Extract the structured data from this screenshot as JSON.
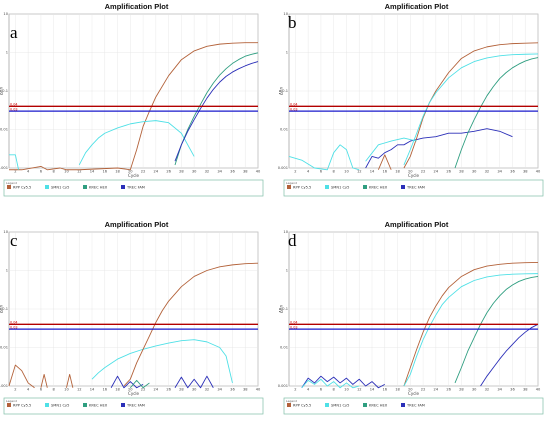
{
  "colors": {
    "rpp": "#b3623a",
    "smn1": "#4fe0e6",
    "krec": "#2f9e80",
    "trec": "#2b2fb8",
    "threshold_red": "#b30000",
    "threshold_blue": "#1a1acc",
    "grid": "#e3e3e3",
    "legend_border": "#7fbfa8"
  },
  "legend": {
    "title": "Legend",
    "items": [
      {
        "key": "rpp",
        "label": "RPP Cy5.5"
      },
      {
        "key": "smn1",
        "label": "SMN1 Cy5"
      },
      {
        "key": "krec",
        "label": "KREC HEX"
      },
      {
        "key": "trec",
        "label": "TREC FAM"
      }
    ]
  },
  "threshold_labels": [
    "0.04",
    "0.03"
  ],
  "chart_data": [
    {
      "panel": "a",
      "type": "line",
      "title": "Amplification Plot",
      "xlabel": "Cycle",
      "ylabel": "ΔRn",
      "y_scale": "log",
      "ylim": [
        0.001,
        10
      ],
      "y_ticks": [
        "0.001",
        "0.01",
        "0.1",
        "1",
        "10"
      ],
      "xlim": [
        1,
        40
      ],
      "x_ticks": [
        "2",
        "4",
        "6",
        "8",
        "10",
        "12",
        "14",
        "16",
        "18",
        "20",
        "22",
        "24",
        "26",
        "28",
        "30",
        "32",
        "34",
        "36",
        "38",
        "40"
      ],
      "thresholds": [
        {
          "key": "rpp",
          "value": 0.04
        },
        {
          "key": "trec",
          "value": 0.03
        }
      ],
      "series": [
        {
          "key": "rpp",
          "x": [
            1,
            3,
            6,
            7,
            9,
            10,
            12,
            18,
            20,
            21,
            22,
            23,
            24,
            26,
            28,
            30,
            32,
            34,
            36,
            38,
            40
          ],
          "y": [
            0.0009,
            0.0009,
            0.0011,
            0.0008,
            0.001,
            0.0009,
            0.0008,
            0.001,
            0.0009,
            0.003,
            0.012,
            0.03,
            0.07,
            0.25,
            0.65,
            1.1,
            1.45,
            1.65,
            1.75,
            1.8,
            1.8
          ]
        },
        {
          "key": "smn1",
          "x": [
            12,
            13,
            14,
            15,
            16,
            18,
            20,
            22,
            24,
            26,
            28,
            30
          ],
          "y": [
            0.0012,
            0.0025,
            0.004,
            0.006,
            0.008,
            0.011,
            0.014,
            0.016,
            0.017,
            0.015,
            0.008,
            0.002
          ]
        },
        {
          "key": "krec",
          "x": [
            27,
            28,
            29,
            30,
            31,
            32,
            33,
            34,
            35,
            36,
            37,
            38,
            39,
            40
          ],
          "y": [
            0.0012,
            0.004,
            0.01,
            0.022,
            0.045,
            0.09,
            0.16,
            0.26,
            0.38,
            0.52,
            0.66,
            0.8,
            0.9,
            0.98
          ]
        },
        {
          "key": "trec",
          "x": [
            27,
            28,
            29,
            30,
            31,
            32,
            33,
            34,
            35,
            36,
            37,
            38,
            39,
            40
          ],
          "y": [
            0.0015,
            0.004,
            0.009,
            0.018,
            0.035,
            0.065,
            0.11,
            0.17,
            0.24,
            0.31,
            0.38,
            0.45,
            0.52,
            0.58
          ]
        },
        {
          "key": "smn1",
          "x": [
            1,
            2,
            2.5
          ],
          "y": [
            0.0022,
            0.0022,
            0.0009
          ]
        }
      ]
    },
    {
      "panel": "b",
      "type": "line",
      "title": "Amplification Plot",
      "xlabel": "Cycle",
      "ylabel": "ΔRn",
      "y_scale": "log",
      "ylim": [
        0.001,
        10
      ],
      "y_ticks": [
        "0.001",
        "0.01",
        "0.1",
        "1",
        "10"
      ],
      "xlim": [
        1,
        40
      ],
      "x_ticks": [
        "2",
        "4",
        "6",
        "8",
        "10",
        "12",
        "14",
        "16",
        "18",
        "20",
        "22",
        "24",
        "26",
        "28",
        "30",
        "32",
        "34",
        "36",
        "38",
        "40"
      ],
      "thresholds": [
        {
          "key": "rpp",
          "value": 0.04
        },
        {
          "key": "trec",
          "value": 0.03
        }
      ],
      "series": [
        {
          "key": "smn1",
          "x": [
            1,
            3,
            5,
            7,
            8,
            9,
            10,
            11,
            12
          ],
          "y": [
            0.002,
            0.0016,
            0.001,
            0.0009,
            0.0025,
            0.004,
            0.003,
            0.001,
            0.0009
          ]
        },
        {
          "key": "rpp",
          "x": [
            15,
            16,
            17
          ],
          "y": [
            0.0009,
            0.0022,
            0.0009
          ]
        },
        {
          "key": "trec",
          "x": [
            13,
            14,
            15,
            16,
            17,
            18,
            19,
            20,
            22,
            24,
            26,
            28,
            30,
            32,
            34,
            36
          ],
          "y": [
            0.001,
            0.002,
            0.0018,
            0.0025,
            0.003,
            0.004,
            0.004,
            0.005,
            0.006,
            0.0065,
            0.008,
            0.008,
            0.009,
            0.0105,
            0.009,
            0.0065
          ]
        },
        {
          "key": "rpp",
          "x": [
            19,
            20,
            21,
            22,
            23,
            24,
            26,
            28,
            30,
            32,
            34,
            36,
            38,
            40
          ],
          "y": [
            0.001,
            0.002,
            0.006,
            0.02,
            0.05,
            0.1,
            0.3,
            0.7,
            1.1,
            1.4,
            1.6,
            1.7,
            1.75,
            1.78
          ]
        },
        {
          "key": "smn1",
          "x": [
            19,
            20,
            21,
            22,
            23,
            24,
            26,
            28,
            30,
            32,
            34,
            36,
            38,
            40
          ],
          "y": [
            0.0012,
            0.003,
            0.008,
            0.022,
            0.05,
            0.09,
            0.22,
            0.4,
            0.58,
            0.72,
            0.82,
            0.88,
            0.9,
            0.92
          ]
        },
        {
          "key": "smn1",
          "x": [
            13,
            15,
            17,
            19,
            21
          ],
          "y": [
            0.0015,
            0.004,
            0.005,
            0.006,
            0.005
          ]
        },
        {
          "key": "krec",
          "x": [
            27,
            28,
            29,
            30,
            31,
            32,
            33,
            34,
            35,
            36,
            37,
            38,
            39,
            40
          ],
          "y": [
            0.001,
            0.003,
            0.008,
            0.018,
            0.038,
            0.075,
            0.13,
            0.21,
            0.3,
            0.4,
            0.5,
            0.6,
            0.68,
            0.74
          ]
        }
      ]
    },
    {
      "panel": "c",
      "type": "line",
      "title": "Amplification Plot",
      "xlabel": "Cycle",
      "ylabel": "ΔRn",
      "y_scale": "log",
      "ylim": [
        0.001,
        10
      ],
      "y_ticks": [
        "0.001",
        "0.01",
        "0.1",
        "1",
        "10"
      ],
      "xlim": [
        1,
        40
      ],
      "x_ticks": [
        "2",
        "4",
        "6",
        "8",
        "10",
        "12",
        "14",
        "16",
        "18",
        "20",
        "22",
        "24",
        "26",
        "28",
        "30",
        "32",
        "34",
        "36",
        "38",
        "40"
      ],
      "thresholds": [
        {
          "key": "rpp",
          "value": 0.04
        },
        {
          "key": "trec",
          "value": 0.03
        }
      ],
      "series": [
        {
          "key": "rpp",
          "x": [
            1,
            2,
            3,
            4,
            5
          ],
          "y": [
            0.001,
            0.0035,
            0.0025,
            0.0012,
            0.0009
          ]
        },
        {
          "key": "rpp",
          "x": [
            6,
            6.5,
            7
          ],
          "y": [
            0.0009,
            0.002,
            0.0009
          ]
        },
        {
          "key": "rpp",
          "x": [
            10,
            10.5,
            11
          ],
          "y": [
            0.0009,
            0.002,
            0.0009
          ]
        },
        {
          "key": "smn1",
          "x": [
            14,
            15,
            16,
            18,
            20,
            22,
            24,
            26,
            28,
            30,
            32,
            34,
            35,
            36
          ],
          "y": [
            0.0015,
            0.0022,
            0.003,
            0.005,
            0.007,
            0.009,
            0.011,
            0.013,
            0.015,
            0.016,
            0.014,
            0.01,
            0.006,
            0.0012
          ]
        },
        {
          "key": "rpp",
          "x": [
            19,
            20,
            21,
            22,
            23,
            24,
            25,
            26,
            28,
            30,
            32,
            34,
            36,
            38,
            40
          ],
          "y": [
            0.001,
            0.0015,
            0.004,
            0.009,
            0.02,
            0.045,
            0.09,
            0.16,
            0.38,
            0.7,
            1.0,
            1.25,
            1.4,
            1.5,
            1.55
          ]
        },
        {
          "key": "trec",
          "x": [
            17,
            18,
            19,
            20,
            21,
            22
          ],
          "y": [
            0.0009,
            0.0018,
            0.0009,
            0.0013,
            0.0009,
            0.0011
          ]
        },
        {
          "key": "trec",
          "x": [
            27,
            28,
            29,
            30,
            31,
            32,
            33
          ],
          "y": [
            0.0009,
            0.0017,
            0.0009,
            0.0015,
            0.0009,
            0.0018,
            0.0009
          ]
        },
        {
          "key": "krec",
          "x": [
            20,
            21,
            22,
            23
          ],
          "y": [
            0.0009,
            0.0014,
            0.0009,
            0.0012
          ]
        }
      ]
    },
    {
      "panel": "d",
      "type": "line",
      "title": "Amplification Plot",
      "xlabel": "Cycle",
      "ylabel": "ΔRn",
      "y_scale": "log",
      "ylim": [
        0.001,
        10
      ],
      "y_ticks": [
        "0.001",
        "0.01",
        "0.1",
        "1",
        "10"
      ],
      "xlim": [
        1,
        40
      ],
      "x_ticks": [
        "2",
        "4",
        "6",
        "8",
        "10",
        "12",
        "14",
        "16",
        "18",
        "20",
        "22",
        "24",
        "26",
        "28",
        "30",
        "32",
        "34",
        "36",
        "38",
        "40"
      ],
      "thresholds": [
        {
          "key": "rpp",
          "value": 0.04
        },
        {
          "key": "trec",
          "value": 0.03
        }
      ],
      "series": [
        {
          "key": "trec",
          "x": [
            3,
            4,
            5,
            6,
            7,
            8,
            9,
            10,
            11,
            12,
            13,
            14,
            15,
            16
          ],
          "y": [
            0.0009,
            0.0016,
            0.0012,
            0.0018,
            0.0013,
            0.0017,
            0.0012,
            0.0016,
            0.0011,
            0.0015,
            0.001,
            0.0013,
            0.0009,
            0.0011
          ]
        },
        {
          "key": "smn1",
          "x": [
            3,
            4,
            5,
            6,
            7,
            8,
            9,
            10,
            11,
            12
          ],
          "y": [
            0.0009,
            0.0014,
            0.0011,
            0.0015,
            0.001,
            0.0013,
            0.0009,
            0.0012,
            0.0009,
            0.001
          ]
        },
        {
          "key": "rpp",
          "x": [
            19,
            20,
            21,
            22,
            23,
            24,
            25,
            26,
            28,
            30,
            32,
            34,
            36,
            38,
            40
          ],
          "y": [
            0.001,
            0.003,
            0.009,
            0.025,
            0.06,
            0.12,
            0.22,
            0.36,
            0.7,
            1.05,
            1.3,
            1.45,
            1.55,
            1.6,
            1.62
          ]
        },
        {
          "key": "smn1",
          "x": [
            19,
            20,
            21,
            22,
            23,
            24,
            25,
            26,
            28,
            30,
            32,
            34,
            36,
            38,
            40
          ],
          "y": [
            0.001,
            0.002,
            0.006,
            0.016,
            0.035,
            0.07,
            0.13,
            0.2,
            0.38,
            0.55,
            0.68,
            0.76,
            0.8,
            0.82,
            0.83
          ]
        },
        {
          "key": "krec",
          "x": [
            27,
            28,
            29,
            30,
            31,
            32,
            33,
            34,
            35,
            36,
            37,
            38,
            39,
            40
          ],
          "y": [
            0.0012,
            0.003,
            0.008,
            0.018,
            0.04,
            0.08,
            0.14,
            0.22,
            0.32,
            0.42,
            0.52,
            0.6,
            0.66,
            0.7
          ]
        },
        {
          "key": "trec",
          "x": [
            31,
            32,
            33,
            34,
            35,
            36,
            37,
            38,
            39,
            40
          ],
          "y": [
            0.001,
            0.0018,
            0.003,
            0.005,
            0.008,
            0.012,
            0.018,
            0.025,
            0.033,
            0.04
          ]
        }
      ]
    }
  ]
}
